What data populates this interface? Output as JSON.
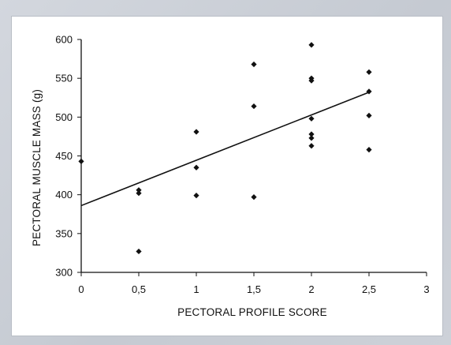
{
  "chart_data": {
    "type": "scatter",
    "xlabel": "PECTORAL PROFILE SCORE",
    "ylabel": "PECTORAL MUSCLE MASS (g)",
    "xlim": [
      0,
      3
    ],
    "ylim": [
      300,
      600
    ],
    "x_ticks": [
      0,
      0.5,
      1,
      1.5,
      2,
      2.5,
      3
    ],
    "x_tick_labels": [
      "0",
      "0,5",
      "1",
      "1,5",
      "2",
      "2,5",
      "3"
    ],
    "y_ticks": [
      300,
      350,
      400,
      450,
      500,
      550,
      600
    ],
    "y_tick_labels": [
      "300",
      "350",
      "400",
      "450",
      "500",
      "550",
      "600"
    ],
    "grid": false,
    "legend": "none",
    "marker": "diamond",
    "marker_color": "#111111",
    "points": [
      {
        "x": 0,
        "y": 443
      },
      {
        "x": 0.5,
        "y": 406
      },
      {
        "x": 0.5,
        "y": 402
      },
      {
        "x": 0.5,
        "y": 327
      },
      {
        "x": 1,
        "y": 481
      },
      {
        "x": 1,
        "y": 435
      },
      {
        "x": 1,
        "y": 399
      },
      {
        "x": 1.5,
        "y": 568
      },
      {
        "x": 1.5,
        "y": 514
      },
      {
        "x": 1.5,
        "y": 397
      },
      {
        "x": 2,
        "y": 593
      },
      {
        "x": 2,
        "y": 550
      },
      {
        "x": 2,
        "y": 547
      },
      {
        "x": 2,
        "y": 498
      },
      {
        "x": 2,
        "y": 478
      },
      {
        "x": 2,
        "y": 473
      },
      {
        "x": 2,
        "y": 463
      },
      {
        "x": 2.5,
        "y": 558
      },
      {
        "x": 2.5,
        "y": 533
      },
      {
        "x": 2.5,
        "y": 502
      },
      {
        "x": 2.5,
        "y": 458
      }
    ],
    "trendline": {
      "x": [
        0,
        2.5
      ],
      "y": [
        386,
        532
      ]
    }
  }
}
